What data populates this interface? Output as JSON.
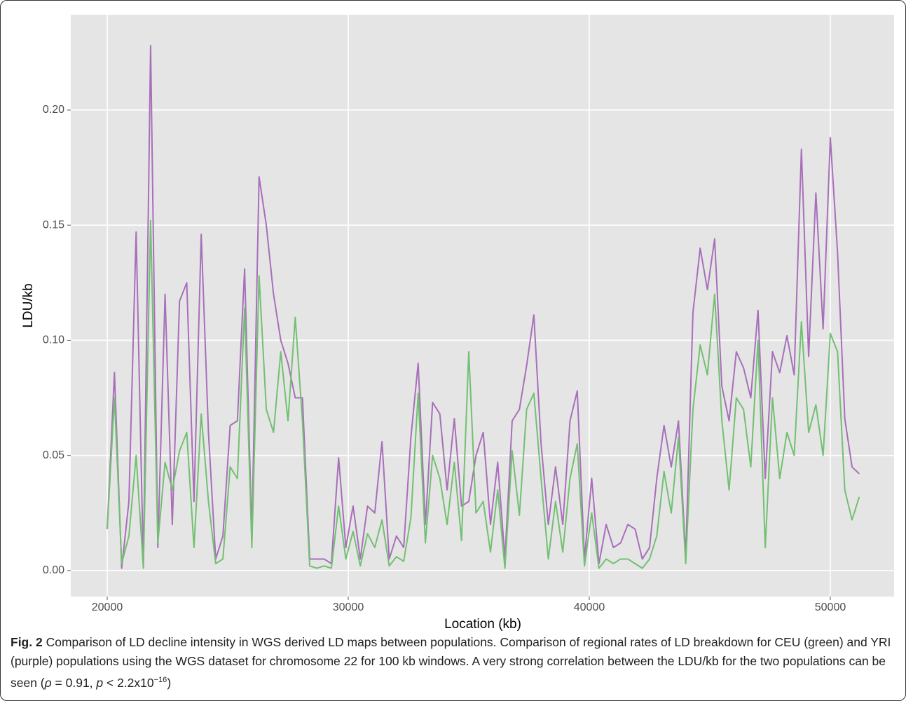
{
  "chart_data": {
    "type": "line",
    "x_label": "Location (kb)",
    "y_label": "LDU/kb",
    "xlim": [
      18488,
      52645
    ],
    "ylim": [
      -0.0113,
      0.2414
    ],
    "xticks": [
      20000,
      30000,
      40000,
      50000
    ],
    "yticks": [
      {
        "value": 0,
        "label": "0.00"
      },
      0.05,
      {
        "value": 0.1,
        "label": "0.10"
      },
      0.15,
      {
        "value": 0.2,
        "label": "0.20"
      }
    ],
    "grid": true,
    "x": [
      20000,
      20300,
      20600,
      20900,
      21200,
      21500,
      21800,
      22100,
      22400,
      22700,
      23000,
      23300,
      23600,
      23900,
      24200,
      24500,
      24800,
      25100,
      25400,
      25700,
      26000,
      26300,
      26600,
      26900,
      27200,
      27500,
      27800,
      28100,
      28400,
      28700,
      29000,
      29300,
      29600,
      29900,
      30200,
      30500,
      30800,
      31100,
      31400,
      31700,
      32000,
      32300,
      32600,
      32900,
      33200,
      33500,
      33800,
      34100,
      34400,
      34700,
      35000,
      35300,
      35600,
      35900,
      36200,
      36500,
      36800,
      37100,
      37400,
      37700,
      38000,
      38300,
      38600,
      38900,
      39200,
      39500,
      39800,
      40100,
      40400,
      40700,
      41000,
      41300,
      41600,
      41900,
      42200,
      42500,
      42800,
      43100,
      43400,
      43700,
      44000,
      44300,
      44600,
      44900,
      45200,
      45500,
      45800,
      46100,
      46400,
      46700,
      47000,
      47300,
      47600,
      47900,
      48200,
      48500,
      48800,
      49100,
      49400,
      49700,
      50000,
      50300,
      50600,
      50900,
      51200
    ],
    "series": [
      {
        "name": "YRI",
        "color": "#a86fba",
        "values": [
          0.018,
          0.086,
          0.001,
          0.03,
          0.147,
          0.002,
          0.228,
          0.01,
          0.12,
          0.02,
          0.117,
          0.125,
          0.03,
          0.146,
          0.06,
          0.005,
          0.015,
          0.063,
          0.065,
          0.131,
          0.015,
          0.171,
          0.15,
          0.12,
          0.1,
          0.09,
          0.075,
          0.075,
          0.005,
          0.005,
          0.005,
          0.003,
          0.049,
          0.01,
          0.028,
          0.005,
          0.028,
          0.025,
          0.056,
          0.005,
          0.015,
          0.01,
          0.058,
          0.09,
          0.02,
          0.073,
          0.068,
          0.035,
          0.066,
          0.028,
          0.03,
          0.05,
          0.06,
          0.02,
          0.047,
          0.005,
          0.065,
          0.07,
          0.089,
          0.111,
          0.055,
          0.02,
          0.045,
          0.02,
          0.065,
          0.078,
          0.005,
          0.04,
          0.003,
          0.02,
          0.01,
          0.012,
          0.02,
          0.018,
          0.005,
          0.01,
          0.04,
          0.063,
          0.045,
          0.065,
          0.006,
          0.112,
          0.14,
          0.122,
          0.144,
          0.08,
          0.065,
          0.095,
          0.088,
          0.075,
          0.113,
          0.04,
          0.095,
          0.086,
          0.102,
          0.085,
          0.183,
          0.093,
          0.164,
          0.105,
          0.188,
          0.138,
          0.066,
          0.045,
          0.042
        ]
      },
      {
        "name": "CEU",
        "color": "#72c072",
        "values": [
          0.018,
          0.075,
          0.003,
          0.015,
          0.05,
          0.001,
          0.152,
          0.012,
          0.047,
          0.035,
          0.052,
          0.06,
          0.01,
          0.068,
          0.03,
          0.003,
          0.005,
          0.045,
          0.04,
          0.114,
          0.01,
          0.128,
          0.07,
          0.06,
          0.095,
          0.065,
          0.11,
          0.065,
          0.002,
          0.001,
          0.002,
          0.001,
          0.028,
          0.005,
          0.017,
          0.002,
          0.016,
          0.01,
          0.022,
          0.002,
          0.006,
          0.004,
          0.023,
          0.077,
          0.012,
          0.05,
          0.04,
          0.02,
          0.047,
          0.013,
          0.095,
          0.025,
          0.03,
          0.008,
          0.035,
          0.001,
          0.052,
          0.024,
          0.07,
          0.077,
          0.04,
          0.005,
          0.03,
          0.008,
          0.04,
          0.055,
          0.002,
          0.025,
          0.001,
          0.005,
          0.003,
          0.005,
          0.005,
          0.003,
          0.001,
          0.005,
          0.015,
          0.043,
          0.025,
          0.058,
          0.003,
          0.07,
          0.098,
          0.085,
          0.12,
          0.065,
          0.035,
          0.075,
          0.07,
          0.045,
          0.1,
          0.01,
          0.075,
          0.04,
          0.06,
          0.05,
          0.108,
          0.06,
          0.072,
          0.05,
          0.103,
          0.095,
          0.035,
          0.022,
          0.032
        ]
      }
    ],
    "caption": {
      "label": "Fig. 2",
      "text": "Comparison of LD decline intensity in WGS derived LD maps between populations. Comparison of regional rates of LD breakdown for CEU (green) and YRI (purple) populations using the WGS dataset for chromosome 22 for 100 kb windows. A very strong correlation between the LDU/kb for the two populations can be seen (",
      "rho": "ρ",
      "rho_text": " = 0.91, ",
      "p": "p",
      "p_text": " < 2.2x10",
      "exponent": "−16",
      "end": ")"
    }
  }
}
